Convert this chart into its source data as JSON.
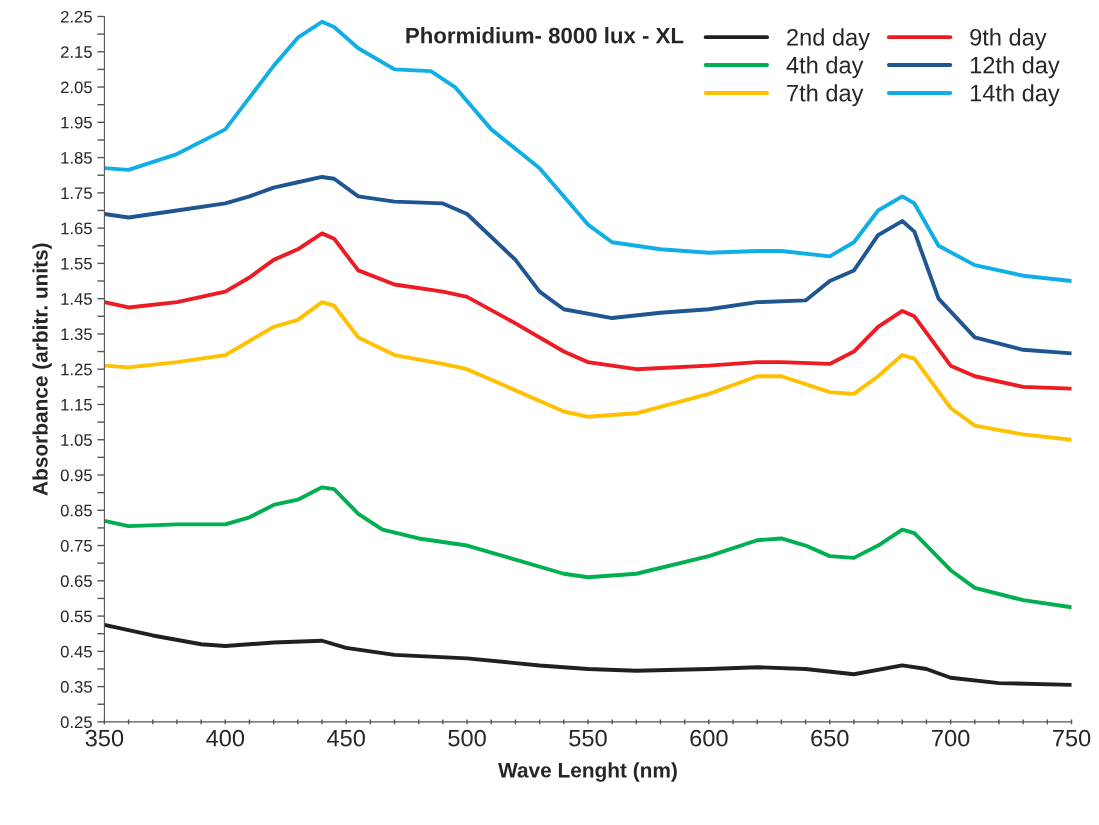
{
  "chart_data": {
    "type": "line",
    "title": "Phormidium- 8000 lux - XL",
    "xlabel": "Wave Lenght (nm)",
    "ylabel": "Absorbance (arbitr. units)",
    "xlim": [
      350,
      750
    ],
    "xticks": [
      350,
      {
        "value": 360,
        "label": null
      },
      {
        "value": 370,
        "label": null
      },
      {
        "value": 380,
        "label": null
      },
      {
        "value": 390,
        "label": null
      },
      400,
      {
        "value": 410,
        "label": null
      },
      {
        "value": 420,
        "label": null
      },
      {
        "value": 430,
        "label": null
      },
      {
        "value": 440,
        "label": null
      },
      450,
      {
        "value": 460,
        "label": null
      },
      {
        "value": 470,
        "label": null
      },
      {
        "value": 480,
        "label": null
      },
      {
        "value": 490,
        "label": null
      },
      500,
      {
        "value": 510,
        "label": null
      },
      {
        "value": 520,
        "label": null
      },
      {
        "value": 530,
        "label": null
      },
      {
        "value": 540,
        "label": null
      },
      550,
      {
        "value": 560,
        "label": null
      },
      {
        "value": 570,
        "label": null
      },
      {
        "value": 580,
        "label": null
      },
      {
        "value": 590,
        "label": null
      },
      600,
      {
        "value": 610,
        "label": null
      },
      {
        "value": 620,
        "label": null
      },
      {
        "value": 630,
        "label": null
      },
      {
        "value": 640,
        "label": null
      },
      650,
      {
        "value": 660,
        "label": null
      },
      {
        "value": 670,
        "label": null
      },
      {
        "value": 680,
        "label": null
      },
      {
        "value": 690,
        "label": null
      },
      700,
      {
        "value": 710,
        "label": null
      },
      {
        "value": 720,
        "label": null
      },
      {
        "value": 730,
        "label": null
      },
      {
        "value": 740,
        "label": null
      },
      750
    ],
    "ylim": [
      0.25,
      2.25
    ],
    "yticks": [
      0.25,
      {
        "value": 0.3,
        "label": null
      },
      0.35,
      {
        "value": 0.4,
        "label": null
      },
      0.45,
      {
        "value": 0.5,
        "label": null
      },
      0.55,
      {
        "value": 0.6,
        "label": null
      },
      0.65,
      {
        "value": 0.7,
        "label": null
      },
      0.75,
      {
        "value": 0.8,
        "label": null
      },
      0.85,
      {
        "value": 0.9,
        "label": null
      },
      0.95,
      {
        "value": 1.0,
        "label": null
      },
      1.05,
      {
        "value": 1.1,
        "label": null
      },
      1.15,
      {
        "value": 1.2,
        "label": null
      },
      1.25,
      {
        "value": 1.3,
        "label": null
      },
      1.35,
      {
        "value": 1.4,
        "label": null
      },
      1.45,
      {
        "value": 1.5,
        "label": null
      },
      1.55,
      {
        "value": 1.6,
        "label": null
      },
      1.65,
      {
        "value": 1.7,
        "label": null
      },
      1.75,
      {
        "value": 1.8,
        "label": null
      },
      1.85,
      {
        "value": 1.9,
        "label": null
      },
      1.95,
      {
        "value": 2.0,
        "label": null
      },
      2.05,
      {
        "value": 2.1,
        "label": null
      },
      2.15,
      {
        "value": 2.2,
        "label": null
      },
      2.25
    ],
    "grid": false,
    "legend": "top right",
    "marker": "none",
    "line_style": "solid",
    "series": [
      {
        "name": "2nd day",
        "color": "#231f20",
        "x": [
          350,
          370,
          390,
          400,
          420,
          440,
          450,
          470,
          500,
          530,
          550,
          570,
          600,
          620,
          640,
          660,
          680,
          690,
          700,
          720,
          750
        ],
        "values": [
          0.525,
          0.495,
          0.47,
          0.465,
          0.475,
          0.48,
          0.46,
          0.44,
          0.43,
          0.41,
          0.4,
          0.395,
          0.4,
          0.405,
          0.4,
          0.385,
          0.41,
          0.4,
          0.375,
          0.36,
          0.355
        ]
      },
      {
        "name": "4th day",
        "color": "#00b050",
        "x": [
          350,
          360,
          380,
          400,
          410,
          420,
          430,
          440,
          445,
          455,
          465,
          480,
          500,
          520,
          540,
          550,
          570,
          600,
          620,
          630,
          640,
          650,
          660,
          670,
          680,
          685,
          700,
          710,
          730,
          750
        ],
        "values": [
          0.82,
          0.805,
          0.81,
          0.81,
          0.83,
          0.865,
          0.88,
          0.915,
          0.91,
          0.84,
          0.795,
          0.77,
          0.75,
          0.71,
          0.67,
          0.66,
          0.67,
          0.72,
          0.765,
          0.77,
          0.75,
          0.72,
          0.715,
          0.75,
          0.795,
          0.785,
          0.68,
          0.63,
          0.595,
          0.575
        ]
      },
      {
        "name": "7th day",
        "color": "#ffc000",
        "x": [
          350,
          360,
          380,
          400,
          410,
          420,
          430,
          440,
          445,
          455,
          470,
          490,
          500,
          520,
          540,
          550,
          570,
          600,
          620,
          630,
          650,
          660,
          670,
          680,
          685,
          700,
          710,
          730,
          750
        ],
        "values": [
          1.26,
          1.255,
          1.27,
          1.29,
          1.33,
          1.37,
          1.39,
          1.44,
          1.43,
          1.34,
          1.29,
          1.265,
          1.25,
          1.19,
          1.13,
          1.115,
          1.125,
          1.18,
          1.23,
          1.23,
          1.185,
          1.18,
          1.23,
          1.29,
          1.28,
          1.14,
          1.09,
          1.065,
          1.05
        ]
      },
      {
        "name": "9th day",
        "color": "#ed1c24",
        "x": [
          350,
          360,
          380,
          400,
          410,
          420,
          430,
          440,
          445,
          455,
          470,
          490,
          500,
          520,
          540,
          550,
          570,
          600,
          620,
          630,
          650,
          660,
          670,
          680,
          685,
          700,
          710,
          730,
          750
        ],
        "values": [
          1.44,
          1.425,
          1.44,
          1.47,
          1.51,
          1.56,
          1.59,
          1.635,
          1.62,
          1.53,
          1.49,
          1.47,
          1.455,
          1.38,
          1.3,
          1.27,
          1.25,
          1.26,
          1.27,
          1.27,
          1.265,
          1.3,
          1.37,
          1.415,
          1.4,
          1.26,
          1.23,
          1.2,
          1.195
        ]
      },
      {
        "name": "12th day",
        "color": "#1f5591",
        "x": [
          350,
          360,
          380,
          400,
          410,
          420,
          430,
          440,
          445,
          455,
          470,
          490,
          500,
          520,
          530,
          540,
          560,
          580,
          600,
          620,
          640,
          650,
          660,
          670,
          680,
          685,
          695,
          710,
          730,
          750
        ],
        "values": [
          1.69,
          1.68,
          1.7,
          1.72,
          1.74,
          1.765,
          1.78,
          1.795,
          1.79,
          1.74,
          1.725,
          1.72,
          1.69,
          1.56,
          1.47,
          1.42,
          1.395,
          1.41,
          1.42,
          1.44,
          1.445,
          1.5,
          1.53,
          1.63,
          1.67,
          1.64,
          1.45,
          1.34,
          1.305,
          1.295
        ]
      },
      {
        "name": "14th day",
        "color": "#11aee6",
        "x": [
          350,
          360,
          380,
          400,
          410,
          420,
          430,
          440,
          445,
          455,
          470,
          485,
          495,
          510,
          530,
          550,
          560,
          580,
          600,
          620,
          630,
          650,
          660,
          670,
          680,
          685,
          695,
          710,
          730,
          750
        ],
        "values": [
          1.82,
          1.815,
          1.86,
          1.93,
          2.02,
          2.11,
          2.19,
          2.235,
          2.22,
          2.16,
          2.1,
          2.095,
          2.05,
          1.93,
          1.82,
          1.66,
          1.61,
          1.59,
          1.58,
          1.585,
          1.585,
          1.57,
          1.61,
          1.7,
          1.74,
          1.72,
          1.6,
          1.545,
          1.515,
          1.5
        ]
      }
    ]
  }
}
